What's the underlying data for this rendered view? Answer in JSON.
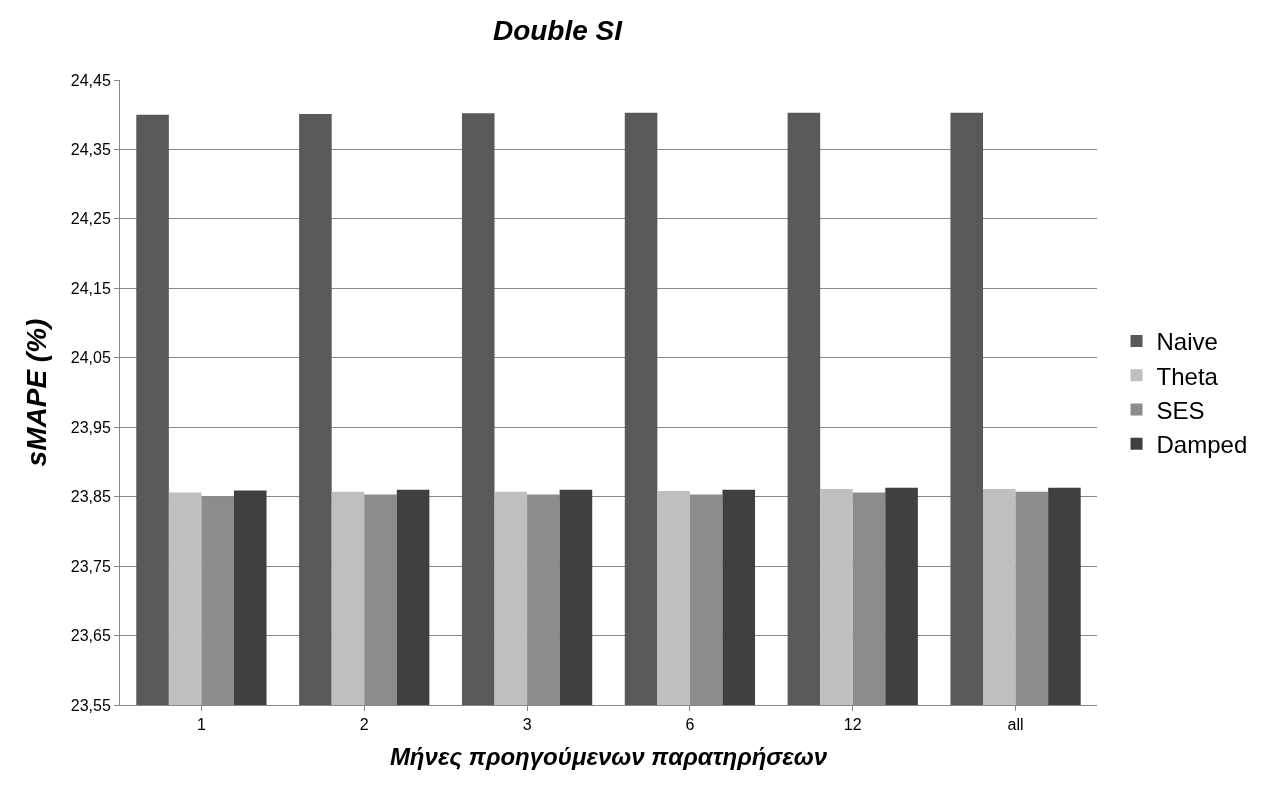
{
  "chart_data": {
    "type": "bar",
    "title": "Double SI",
    "xlabel": "Μήνες προηγούμενων παρατηρήσεων",
    "ylabel": "sMAPE (%)",
    "categories": [
      "1",
      "2",
      "3",
      "6",
      "12",
      "all"
    ],
    "series": [
      {
        "name": "Naive",
        "color": "#595959",
        "values": [
          24.4,
          24.401,
          24.402,
          24.403,
          24.403,
          24.403
        ]
      },
      {
        "name": "Theta",
        "color": "#bfbfbf",
        "values": [
          23.856,
          23.857,
          23.857,
          23.858,
          23.861,
          23.861
        ]
      },
      {
        "name": "SES",
        "color": "#8c8c8c",
        "values": [
          23.85,
          23.853,
          23.853,
          23.853,
          23.856,
          23.857
        ]
      },
      {
        "name": "Damped",
        "color": "#404040",
        "values": [
          23.859,
          23.86,
          23.86,
          23.86,
          23.863,
          23.863
        ]
      }
    ],
    "ylim": [
      23.55,
      24.45
    ],
    "yticks": [
      {
        "value": 23.55,
        "label": "23,55"
      },
      {
        "value": 23.65,
        "label": "23,65"
      },
      {
        "value": 23.75,
        "label": "23,75"
      },
      {
        "value": 23.85,
        "label": "23,85"
      },
      {
        "value": 23.95,
        "label": "23,95"
      },
      {
        "value": 24.05,
        "label": "24,05"
      },
      {
        "value": 24.15,
        "label": "24,15"
      },
      {
        "value": 24.25,
        "label": "24,25"
      },
      {
        "value": 24.35,
        "label": "24,35"
      },
      {
        "value": 24.45,
        "label": "24,45"
      }
    ],
    "grid": "y",
    "legend": "right"
  }
}
